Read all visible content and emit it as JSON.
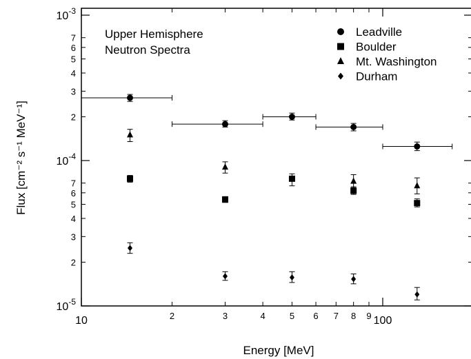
{
  "chart_data": {
    "type": "scatter",
    "annotation_lines": [
      "Upper Hemisphere",
      "Neutron Spectra"
    ],
    "xlabel": "Energy [MeV]",
    "ylabel": "Flux [cm⁻² s⁻¹ MeV⁻¹]",
    "x_scale": "log",
    "y_scale": "log",
    "xlim": [
      10,
      130
    ],
    "ylim": [
      9.2e-06,
      0.00108
    ],
    "x_major_ticks": [
      {
        "value": 10,
        "label": "10"
      },
      {
        "value": 100,
        "label": "100"
      }
    ],
    "x_minor_ticks": [
      {
        "value": 20,
        "label": "2"
      },
      {
        "value": 30,
        "label": "3"
      },
      {
        "value": 40,
        "label": "4"
      },
      {
        "value": 50,
        "label": "5"
      },
      {
        "value": 60,
        "label": "6"
      },
      {
        "value": 70,
        "label": "7"
      },
      {
        "value": 80,
        "label": "8"
      },
      {
        "value": 90,
        "label": "9"
      }
    ],
    "y_major_ticks": [
      {
        "value": 0.001,
        "mantissa": "10",
        "exponent": "-3"
      },
      {
        "value": 0.0001,
        "mantissa": "10",
        "exponent": "-4"
      },
      {
        "value": 1e-05,
        "mantissa": "10",
        "exponent": "-5"
      }
    ],
    "y_minor_ticks": [
      {
        "value": 0.0007,
        "label": "7"
      },
      {
        "value": 0.0006,
        "label": "6"
      },
      {
        "value": 0.0005,
        "label": "5"
      },
      {
        "value": 0.0004,
        "label": "4"
      },
      {
        "value": 0.0003,
        "label": "3"
      },
      {
        "value": 0.0002,
        "label": "2"
      },
      {
        "value": 7e-05,
        "label": "7"
      },
      {
        "value": 6e-05,
        "label": "6"
      },
      {
        "value": 5e-05,
        "label": "5"
      },
      {
        "value": 4e-05,
        "label": "4"
      },
      {
        "value": 3e-05,
        "label": "3"
      },
      {
        "value": 2e-05,
        "label": "2"
      }
    ],
    "legend_position": "top-right",
    "series": [
      {
        "name": "Leadville",
        "marker": "circle",
        "points": [
          {
            "x": 14.5,
            "y": 0.00027,
            "yerr_low": 0.000255,
            "yerr_high": 0.000285,
            "xerr_low": 10,
            "xerr_high": 20
          },
          {
            "x": 30,
            "y": 0.000178,
            "yerr_low": 0.00017,
            "yerr_high": 0.000188,
            "xerr_low": 20,
            "xerr_high": 40
          },
          {
            "x": 50,
            "y": 0.0002,
            "yerr_low": 0.00019,
            "yerr_high": 0.000212,
            "xerr_low": 40,
            "xerr_high": 60
          },
          {
            "x": 80,
            "y": 0.00017,
            "yerr_low": 0.00016,
            "yerr_high": 0.00018,
            "xerr_low": 60,
            "xerr_high": 100
          },
          {
            "x": 130,
            "y": 0.000125,
            "yerr_low": 0.000117,
            "yerr_high": 0.000134,
            "xerr_low": 100,
            "xerr_high": 170
          }
        ]
      },
      {
        "name": "Boulder",
        "marker": "square",
        "points": [
          {
            "x": 14.5,
            "y": 7.5e-05,
            "yerr_low": 7.1e-05,
            "yerr_high": 7.9e-05
          },
          {
            "x": 30,
            "y": 5.4e-05,
            "yerr_low": 5.15e-05,
            "yerr_high": 5.65e-05
          },
          {
            "x": 50,
            "y": 7.5e-05,
            "yerr_low": 6.7e-05,
            "yerr_high": 8.1e-05
          },
          {
            "x": 80,
            "y": 6.2e-05,
            "yerr_low": 5.85e-05,
            "yerr_high": 6.6e-05
          },
          {
            "x": 130,
            "y": 5.1e-05,
            "yerr_low": 4.8e-05,
            "yerr_high": 5.45e-05
          }
        ]
      },
      {
        "name": "Mt. Washington",
        "marker": "triangle",
        "points": [
          {
            "x": 14.5,
            "y": 0.00015,
            "yerr_low": 0.000135,
            "yerr_high": 0.000164
          },
          {
            "x": 30,
            "y": 9e-05,
            "yerr_low": 8.2e-05,
            "yerr_high": 9.8e-05
          },
          {
            "x": 80,
            "y": 7.2e-05,
            "yerr_low": 6.5e-05,
            "yerr_high": 8e-05
          },
          {
            "x": 130,
            "y": 6.7e-05,
            "yerr_low": 5.9e-05,
            "yerr_high": 7.6e-05
          }
        ]
      },
      {
        "name": "Durham",
        "marker": "diamond",
        "points": [
          {
            "x": 14.5,
            "y": 2.5e-05,
            "yerr_low": 2.3e-05,
            "yerr_high": 2.72e-05
          },
          {
            "x": 30,
            "y": 1.6e-05,
            "yerr_low": 1.5e-05,
            "yerr_high": 1.72e-05
          },
          {
            "x": 50,
            "y": 1.57e-05,
            "yerr_low": 1.45e-05,
            "yerr_high": 1.72e-05
          },
          {
            "x": 80,
            "y": 1.53e-05,
            "yerr_low": 1.42e-05,
            "yerr_high": 1.66e-05
          },
          {
            "x": 130,
            "y": 1.2e-05,
            "yerr_low": 1.1e-05,
            "yerr_high": 1.34e-05
          }
        ]
      }
    ]
  }
}
